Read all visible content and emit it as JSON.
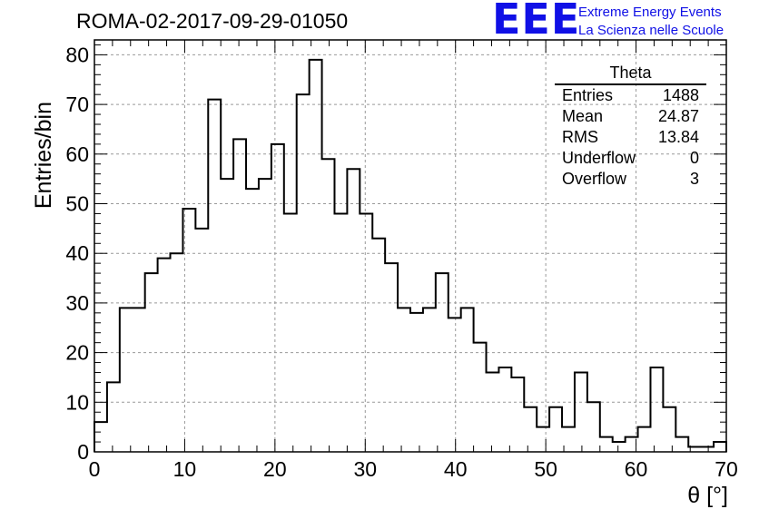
{
  "header": {
    "title": "ROMA-02-2017-09-29-01050",
    "logo": "EEE",
    "logo_line1": "Extreme Energy Events",
    "logo_line2": "La Scienza nelle Scuole"
  },
  "stats": {
    "title": "Theta",
    "rows": [
      {
        "label": "Entries",
        "value": "1488"
      },
      {
        "label": "Mean",
        "value": "24.87"
      },
      {
        "label": "RMS",
        "value": "13.84"
      },
      {
        "label": "Underflow",
        "value": "0"
      },
      {
        "label": "Overflow",
        "value": "3"
      }
    ]
  },
  "chart_data": {
    "type": "bar",
    "style": "step-histogram",
    "title": "ROMA-02-2017-09-29-01050",
    "xlabel": "θ [°]",
    "ylabel": "Entries/bin",
    "xlim": [
      0,
      70
    ],
    "ylim": [
      0,
      83
    ],
    "grid": true,
    "bin_width": 1.4,
    "xticks": [
      0,
      10,
      20,
      30,
      40,
      50,
      60,
      70
    ],
    "yticks": [
      0,
      10,
      20,
      30,
      40,
      50,
      60,
      70,
      80
    ],
    "bin_edges": [
      0,
      1.4,
      2.8,
      4.2,
      5.6,
      7,
      8.4,
      9.8,
      11.2,
      12.6,
      14,
      15.4,
      16.8,
      18.2,
      19.6,
      21,
      22.4,
      23.8,
      25.2,
      26.6,
      28,
      29.4,
      30.8,
      32.2,
      33.6,
      35,
      36.4,
      37.8,
      39.2,
      40.6,
      42,
      43.4,
      44.8,
      46.2,
      47.6,
      49,
      50.4,
      51.8,
      53.2,
      54.6,
      56,
      57.4,
      58.8,
      60.2,
      61.6,
      63,
      64.4,
      65.8,
      67.2,
      68.6,
      70
    ],
    "values": [
      6,
      14,
      29,
      29,
      36,
      39,
      40,
      49,
      45,
      71,
      55,
      63,
      53,
      55,
      62,
      48,
      72,
      79,
      59,
      48,
      57,
      48,
      43,
      38,
      29,
      28,
      29,
      36,
      27,
      29,
      22,
      16,
      17,
      15,
      9,
      5,
      9,
      5,
      16,
      10,
      3,
      2,
      3,
      5,
      17,
      9,
      3,
      1,
      1,
      2
    ],
    "color": "#000000",
    "grid_color": "#999999"
  }
}
